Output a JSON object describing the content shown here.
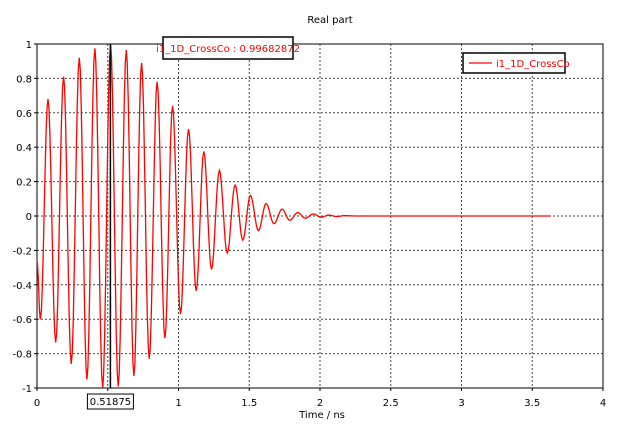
{
  "chart_data": {
    "type": "line",
    "title": "Real part",
    "xlabel": "Time / ns",
    "ylabel": "",
    "xlim": [
      0,
      4
    ],
    "ylim": [
      -1,
      1
    ],
    "xticks": [
      0,
      0.5,
      1,
      1.5,
      2,
      2.5,
      3,
      3.5,
      4
    ],
    "xtick_labels": [
      "0",
      "",
      "1",
      "1.5",
      "2",
      "2.5",
      "3",
      "3.5",
      "4"
    ],
    "yticks": [
      -1,
      -0.8,
      -0.6,
      -0.4,
      -0.2,
      0,
      0.2,
      0.4,
      0.6,
      0.8,
      1
    ],
    "ytick_labels": [
      "-1",
      "-0.8",
      "-0.6",
      "-0.4",
      "-0.2",
      "0",
      "0.2",
      "0.4",
      "0.6",
      "0.8",
      "1"
    ],
    "grid": true,
    "legend_position": "top-right",
    "series": [
      {
        "name": "i1_1D_CrossCo",
        "color": "#ff0000",
        "extrema_x": [
          0,
          0.024,
          0.078,
          0.132,
          0.188,
          0.242,
          0.299,
          0.353,
          0.409,
          0.464,
          0.52,
          0.574,
          0.631,
          0.685,
          0.739,
          0.793,
          0.849,
          0.904,
          0.958,
          1.014,
          1.071,
          1.125,
          1.179,
          1.233,
          1.289,
          1.344,
          1.4,
          1.454,
          1.508,
          1.565,
          1.619,
          1.675,
          1.732,
          1.786,
          1.842,
          1.896,
          1.953,
          2.007,
          2.062,
          2.117,
          2.172,
          2.25,
          3.63
        ],
        "extrema_y": [
          -0.26,
          -0.6,
          0.68,
          -0.735,
          0.81,
          -0.86,
          0.92,
          -0.95,
          0.975,
          -1.0,
          0.997,
          -0.99,
          0.965,
          -0.93,
          0.89,
          -0.83,
          0.78,
          -0.71,
          0.64,
          -0.57,
          0.505,
          -0.435,
          0.375,
          -0.31,
          0.265,
          -0.215,
          0.18,
          -0.14,
          0.12,
          -0.085,
          0.072,
          -0.045,
          0.04,
          -0.025,
          0.02,
          -0.013,
          0.012,
          -0.007,
          0.005,
          -0.003,
          0.002,
          0,
          0
        ]
      }
    ],
    "cursor": {
      "x": 0.51875,
      "x_label": "0.51875",
      "readout": "i1_1D_CrossCo : 0.99682872"
    }
  }
}
